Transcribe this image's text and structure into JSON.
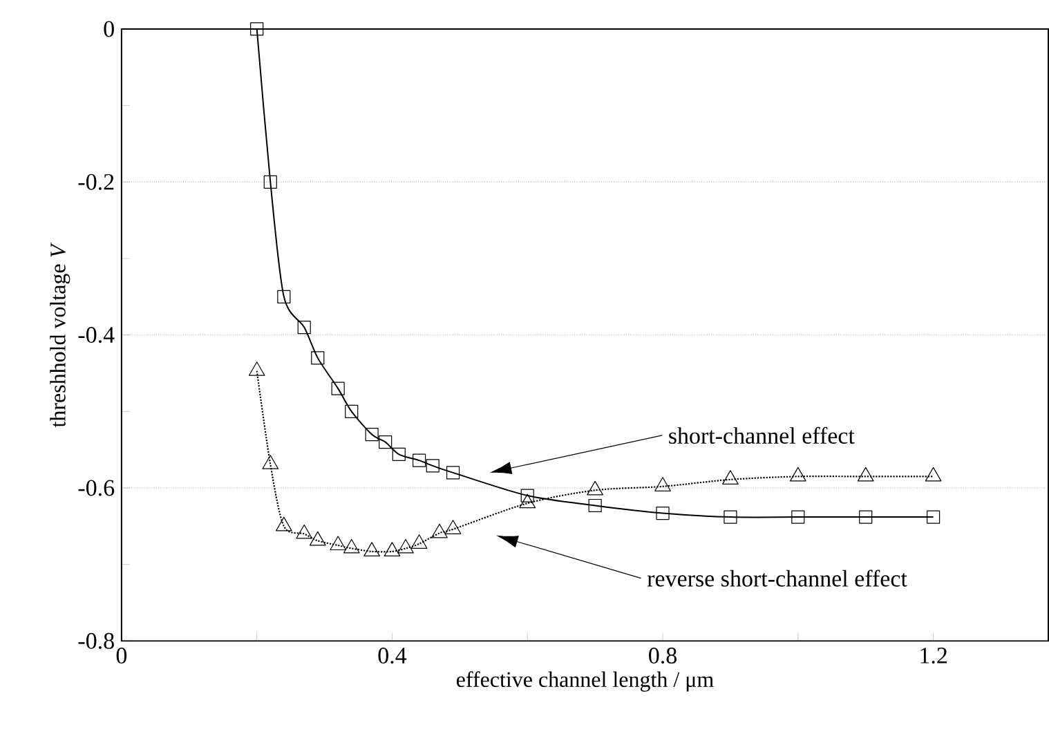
{
  "chart_data": {
    "type": "line",
    "xlabel": "effective channel length / μm",
    "ylabel": "threshhold voltage *V*",
    "xlim": [
      0,
      1.37
    ],
    "ylim": [
      -0.8,
      0
    ],
    "xticks": [
      0,
      {
        "value": 0.2,
        "label": null
      },
      0.4,
      {
        "value": 0.6,
        "label": null
      },
      0.8,
      {
        "value": 1.0,
        "label": null
      },
      1.2
    ],
    "yticks": [
      -0.8,
      {
        "value": -0.7,
        "label": null
      },
      -0.6,
      {
        "value": -0.5,
        "label": null
      },
      -0.4,
      {
        "value": -0.3,
        "label": null
      },
      -0.2,
      {
        "value": -0.1,
        "label": null
      },
      0
    ],
    "grid": "y",
    "series": [
      {
        "color": "#000000",
        "marker": "square",
        "line_style": "solid",
        "x": [
          0.2,
          0.22,
          0.24,
          0.27,
          0.29,
          0.32,
          0.34,
          0.37,
          0.39,
          0.41,
          0.44,
          0.46,
          0.49,
          0.6,
          0.7,
          0.8,
          0.9,
          1.0,
          1.1,
          1.2
        ],
        "values": [
          0,
          -0.2,
          -0.35,
          -0.39,
          -0.43,
          -0.47,
          -0.5,
          -0.53,
          -0.54,
          -0.556,
          -0.564,
          -0.571,
          -0.58,
          -0.61,
          -0.623,
          -0.633,
          -0.638,
          -0.638,
          -0.638,
          -0.638
        ]
      },
      {
        "color": "#000000",
        "marker": "triangle",
        "line_style": "dotted",
        "x": [
          0.2,
          0.22,
          0.24,
          0.27,
          0.29,
          0.32,
          0.34,
          0.37,
          0.4,
          0.42,
          0.44,
          0.47,
          0.49,
          0.6,
          0.7,
          0.8,
          0.9,
          1.0,
          1.1,
          1.2
        ],
        "values": [
          -0.447,
          -0.569,
          -0.65,
          -0.66,
          -0.669,
          -0.675,
          -0.679,
          -0.683,
          -0.683,
          -0.679,
          -0.673,
          -0.659,
          -0.654,
          -0.62,
          -0.603,
          -0.598,
          -0.589,
          -0.585,
          -0.585,
          -0.585
        ]
      }
    ],
    "annotations": [
      "short-channel effect",
      "reverse short-channel effect"
    ]
  }
}
